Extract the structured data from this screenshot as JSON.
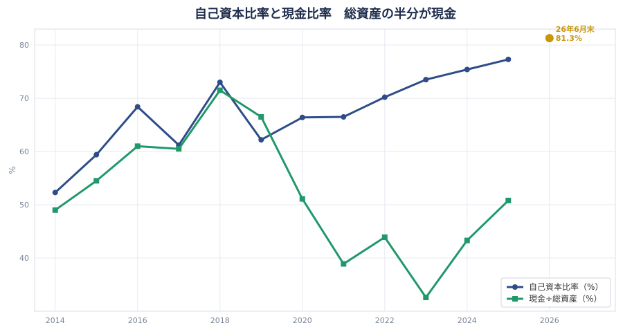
{
  "chart_data": {
    "type": "line",
    "title": "自己資本比率と現金比率　総資産の半分が現金",
    "xlabel": "",
    "ylabel": "%",
    "xlim": [
      2013.5,
      2027.6
    ],
    "ylim": [
      30,
      83
    ],
    "xticks": [
      2014,
      2016,
      2018,
      2020,
      2022,
      2024,
      2026
    ],
    "yticks": [
      40,
      50,
      60,
      70,
      80
    ],
    "grid": true,
    "legend_position": "bottom-right",
    "series": [
      {
        "name": "自己資本比率（%）",
        "color": "#2e4c87",
        "marker": "circle",
        "x": [
          2014,
          2015,
          2016,
          2017,
          2018,
          2019,
          2020,
          2021,
          2022,
          2023,
          2024,
          2025
        ],
        "y": [
          52.3,
          59.4,
          68.4,
          61.2,
          73.0,
          62.2,
          66.4,
          66.5,
          70.2,
          73.5,
          75.4,
          77.3
        ]
      },
      {
        "name": "現金÷総資産（%）",
        "color": "#20986b",
        "marker": "square",
        "x": [
          2014,
          2015,
          2016,
          2017,
          2018,
          2019,
          2020,
          2021,
          2022,
          2023,
          2024,
          2025
        ],
        "y": [
          49.0,
          54.5,
          61.0,
          60.5,
          71.5,
          66.5,
          51.1,
          38.9,
          43.9,
          32.6,
          43.3,
          50.8
        ]
      }
    ],
    "annotations": [
      {
        "x": 2026,
        "y": 81.3,
        "label_line1": "26年6月末",
        "label_line2": "81.3%",
        "color": "#c8960c"
      }
    ]
  }
}
